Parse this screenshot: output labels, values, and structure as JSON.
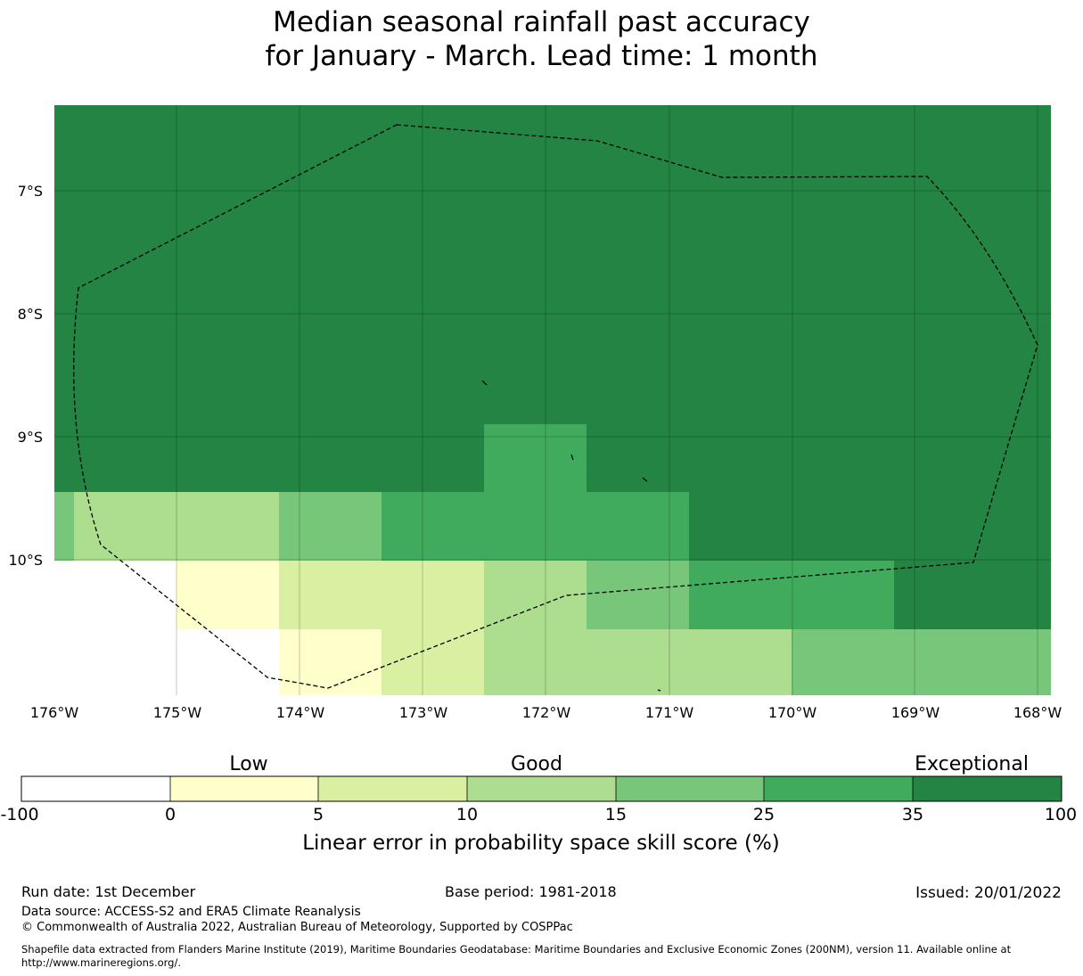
{
  "title": {
    "line1": "Median seasonal rainfall past accuracy",
    "line2": "for January - March. Lead time: 1 month"
  },
  "map": {
    "lat_labels": [
      "7°S",
      "8°S",
      "9°S",
      "10°S"
    ],
    "lon_labels": [
      "176°W",
      "175°W",
      "174°W",
      "173°W",
      "172°W",
      "171°W",
      "170°W",
      "169°W",
      "168°W"
    ]
  },
  "colorbar": {
    "category_labels": [
      "Low",
      "Good",
      "Exceptional"
    ],
    "tick_labels": [
      "-100",
      "0",
      "5",
      "10",
      "15",
      "25",
      "35",
      "100"
    ],
    "colors": [
      "#ffffff",
      "#ffffcc",
      "#d9f0a3",
      "#addd8e",
      "#78c679",
      "#41ab5d",
      "#238443"
    ],
    "axis_label": "Linear error in probability space skill score (%)"
  },
  "footer": {
    "run_date": "Run date: 1st December",
    "base_period": "Base period: 1981-2018",
    "issued": "Issued: 20/01/2022",
    "data_source": "Data source: ACCESS-S2 and ERA5 Climate Reanalysis",
    "copyright": "© Commonwealth of Australia 2022, Australian Bureau of Meteorology, Supported by COSPPac",
    "shapefile_line1": "Shapefile data extracted from Flanders Marine Institute (2019), Maritime Boundaries Geodatabase: Maritime Boundaries and Exclusive Economic Zones (200NM), version 11. Available online at",
    "shapefile_line2": "http://www.marineregions.org/."
  }
}
